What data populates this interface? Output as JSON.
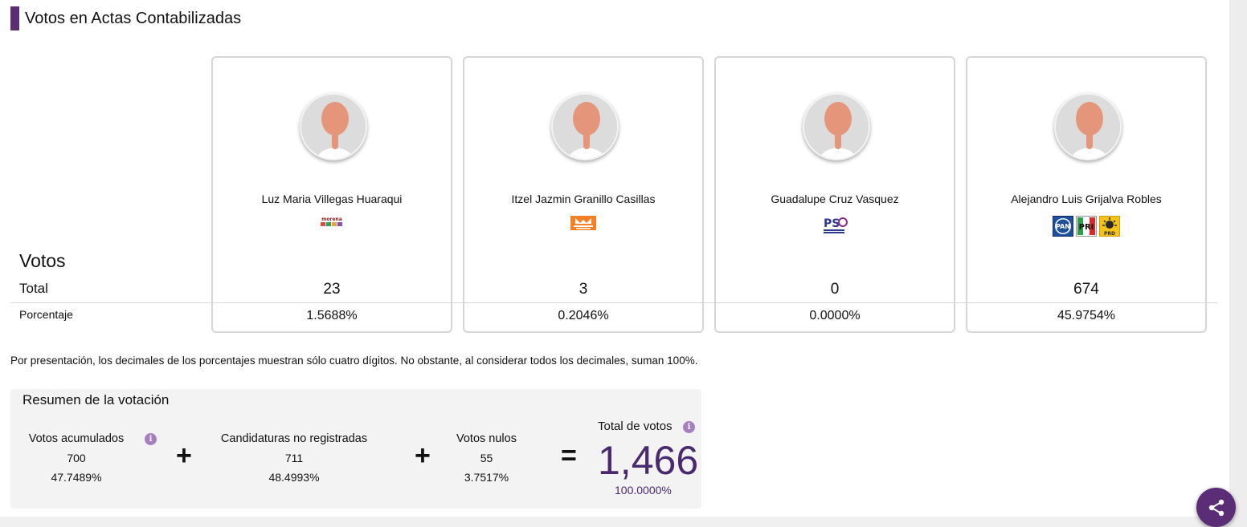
{
  "section": {
    "title": "Votos en Actas Contabilizadas"
  },
  "row_labels": {
    "votos": "Votos",
    "total": "Total",
    "porcentaje": "Porcentaje"
  },
  "candidates": [
    {
      "name": "Luz Maria Villegas Huaraqui",
      "parties": [
        "morena"
      ],
      "total": "23",
      "pct": "1.5688%"
    },
    {
      "name": "Itzel Jazmin Granillo Casillas",
      "parties": [
        "movimiento-ciudadano"
      ],
      "total": "3",
      "pct": "0.2046%"
    },
    {
      "name": "Guadalupe Cruz Vasquez",
      "parties": [
        "pes"
      ],
      "total": "0",
      "pct": "0.0000%"
    },
    {
      "name": "Alejandro Luis Grijalva Robles",
      "parties": [
        "pan",
        "pri",
        "prd"
      ],
      "total": "674",
      "pct": "45.9754%"
    }
  ],
  "party_logo_text": {
    "morena": "morena",
    "mc": "MOVIMIENTO CIUDADANO",
    "pes": "PS",
    "pan": "PAN",
    "pri": "PRI",
    "prd": "PRD"
  },
  "note": "Por presentación, los decimales de los porcentajes muestran sólo cuatro dígitos. No obstante, al considerar todos los decimales, suman 100%.",
  "summary": {
    "title": "Resumen de la votación",
    "acumulados": {
      "label": "Votos acumulados",
      "value": "700",
      "pct": "47.7489%"
    },
    "no_registradas": {
      "label": "Candidaturas no registradas",
      "value": "711",
      "pct": "48.4993%"
    },
    "nulos": {
      "label": "Votos nulos",
      "value": "55",
      "pct": "3.7517%"
    },
    "total": {
      "label": "Total de votos",
      "value": "1,466",
      "pct": "100.0000%"
    },
    "plus": "+",
    "equals": "=",
    "info": "i"
  },
  "colors": {
    "accent": "#5c2d77",
    "total_value": "#4a2a6e",
    "info_icon": "#a77fc0"
  },
  "icons": [
    "avatar-placeholder-icon",
    "info-icon",
    "share-icon"
  ]
}
